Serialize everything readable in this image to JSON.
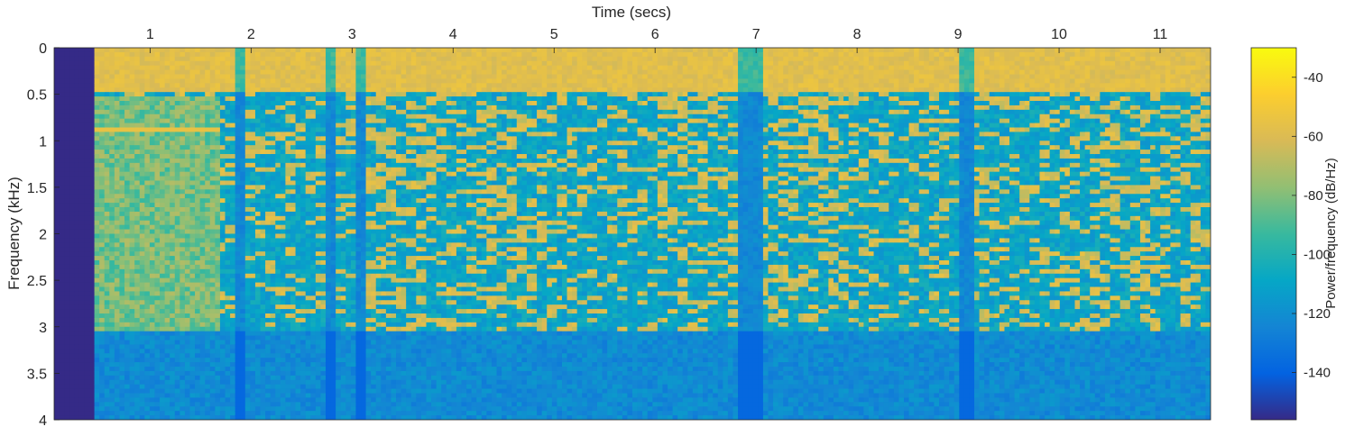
{
  "chart_data": {
    "type": "heatmap",
    "xlabel": "Time (secs)",
    "ylabel": "Frequency (kHz)",
    "x_axis_position": "top",
    "y_axis_direction": "reversed",
    "xlim": [
      0.05,
      11.5
    ],
    "ylim": [
      0,
      4
    ],
    "xticks": [
      1,
      2,
      3,
      4,
      5,
      6,
      7,
      8,
      9,
      10,
      11
    ],
    "xtick_labels": [
      "1",
      "2",
      "3",
      "4",
      "5",
      "6",
      "7",
      "8",
      "9",
      "10",
      "11"
    ],
    "yticks": [
      0,
      0.5,
      1,
      1.5,
      2,
      2.5,
      3,
      3.5,
      4
    ],
    "ytick_labels": [
      "0",
      "0.5",
      "1",
      "1.5",
      "2",
      "2.5",
      "3",
      "3.5",
      "4"
    ],
    "colorbar": {
      "label": "Power/frequency (dB/Hz)",
      "range": [
        -156,
        -30
      ],
      "ticks": [
        -40,
        -60,
        -80,
        -100,
        -120,
        -140
      ],
      "tick_labels": [
        "-40",
        "-60",
        "-80",
        "-100",
        "-120",
        "-140"
      ],
      "colormap": "parula",
      "position": "right"
    },
    "silence_region": {
      "time_end": 0.45,
      "value_db": -156
    },
    "tone": {
      "freq_khz": 0.88,
      "time_start": 0.45,
      "time_end": 1.7,
      "value_db": -55
    },
    "bands": [
      {
        "name": "loud_low",
        "freq_range_khz": [
          0,
          0.5
        ],
        "typical_db": -58
      },
      {
        "name": "speech_mid",
        "freq_range_khz": [
          0.5,
          3.05
        ],
        "typical_db": -110,
        "blob_db": -62
      },
      {
        "name": "high",
        "freq_range_khz": [
          3.05,
          4
        ],
        "typical_db": -122
      }
    ],
    "quiet_time_columns": [
      1.9,
      2.8,
      3.1,
      6.9,
      7.0,
      9.05,
      9.1
    ],
    "grid": false
  },
  "colors": {
    "parula": [
      "#352a87",
      "#0363e1",
      "#1485d4",
      "#06a7c6",
      "#38b99e",
      "#92bf73",
      "#d9ba56",
      "#fcce2e",
      "#f9fb0e"
    ],
    "axis": "#262626"
  }
}
